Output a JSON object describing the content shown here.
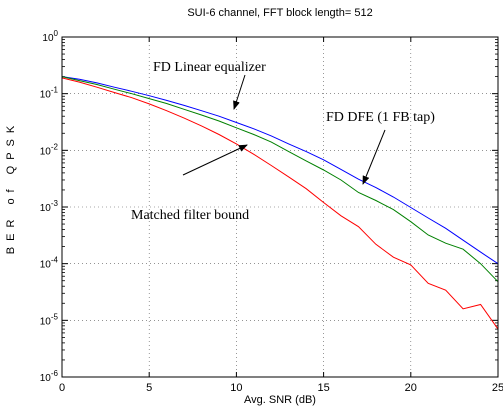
{
  "chart_data": {
    "type": "line",
    "title": "SUI-6 channel, FFT block length= 512",
    "xlabel": "Avg. SNR (dB)",
    "ylabel": "BER of QPSK",
    "yscale": "log",
    "xlim": [
      0,
      25
    ],
    "ylim": [
      1e-06,
      1
    ],
    "xticks": [
      0,
      5,
      10,
      15,
      20,
      25
    ],
    "yticks": [
      1,
      0.1,
      0.01,
      0.001,
      0.0001,
      1e-05,
      1e-06
    ],
    "ytick_labels": [
      {
        "base": "10",
        "exp": "0"
      },
      {
        "base": "10",
        "exp": "-1"
      },
      {
        "base": "10",
        "exp": "-2"
      },
      {
        "base": "10",
        "exp": "-3"
      },
      {
        "base": "10",
        "exp": "-4"
      },
      {
        "base": "10",
        "exp": "-5"
      },
      {
        "base": "10",
        "exp": "-6"
      }
    ],
    "grid": true,
    "series": [
      {
        "name": "FD Linear equalizer",
        "color": "#0000ff",
        "x": [
          0,
          1,
          2,
          3,
          4,
          5,
          6,
          7,
          8,
          9,
          10,
          11,
          12,
          13,
          14,
          15,
          16,
          17,
          18,
          19,
          20,
          21,
          22,
          23,
          24,
          25
        ],
        "y": [
          0.2,
          0.18,
          0.155,
          0.13,
          0.11,
          0.092,
          0.076,
          0.062,
          0.05,
          0.04,
          0.031,
          0.024,
          0.018,
          0.013,
          0.0095,
          0.0068,
          0.0046,
          0.0031,
          0.0022,
          0.0015,
          0.00098,
          0.00064,
          0.00042,
          0.00026,
          0.00016,
          0.0001
        ]
      },
      {
        "name": "FD DFE (1 FB tap)",
        "color": "#008000",
        "x": [
          0,
          1,
          2,
          3,
          4,
          5,
          6,
          7,
          8,
          9,
          10,
          11,
          12,
          13,
          14,
          15,
          16,
          17,
          18,
          19,
          20,
          21,
          22,
          23,
          24,
          25
        ],
        "y": [
          0.2,
          0.17,
          0.145,
          0.12,
          0.1,
          0.082,
          0.067,
          0.053,
          0.042,
          0.033,
          0.025,
          0.019,
          0.014,
          0.0095,
          0.0065,
          0.0045,
          0.003,
          0.0018,
          0.0013,
          0.0009,
          0.00055,
          0.00032,
          0.00023,
          0.00018,
          0.0001,
          4.8e-05
        ]
      },
      {
        "name": "Matched filter bound",
        "color": "#ff0000",
        "x": [
          0,
          1,
          2,
          3,
          4,
          5,
          6,
          7,
          8,
          9,
          10,
          11,
          12,
          13,
          14,
          15,
          16,
          17,
          18,
          19,
          20,
          21,
          22,
          23,
          24,
          25
        ],
        "y": [
          0.19,
          0.16,
          0.13,
          0.105,
          0.085,
          0.066,
          0.05,
          0.037,
          0.027,
          0.019,
          0.013,
          0.0085,
          0.0054,
          0.0034,
          0.0021,
          0.0012,
          0.0007,
          0.00045,
          0.00022,
          0.00013,
          9.5e-05,
          4.5e-05,
          3.4e-05,
          1.6e-05,
          1.9e-05,
          7e-06
        ]
      }
    ],
    "annotations": [
      {
        "text": "FD Linear equalizer",
        "target_series": 0
      },
      {
        "text": "FD DFE (1 FB tap)",
        "target_series": 1
      },
      {
        "text": "Matched filter bound",
        "target_series": 2
      }
    ]
  }
}
